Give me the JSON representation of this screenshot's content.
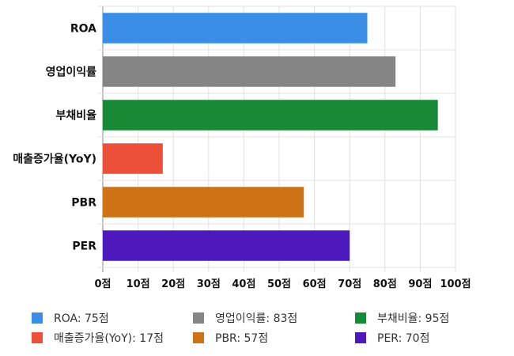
{
  "chart_data": {
    "type": "bar",
    "orientation": "horizontal",
    "categories": [
      "ROA",
      "영업이익률",
      "부채비율",
      "매출증가율(YoY)",
      "PBR",
      "PER"
    ],
    "values": [
      75,
      83,
      95,
      17,
      57,
      70
    ],
    "colors": [
      "#3a8ee6",
      "#858585",
      "#178a37",
      "#ec4f3a",
      "#cd7217",
      "#4e19bc"
    ],
    "xlim": [
      0,
      100
    ],
    "x_ticks": [
      0,
      10,
      20,
      30,
      40,
      50,
      60,
      70,
      80,
      90,
      100
    ],
    "tick_suffix": "점",
    "grid": true,
    "legend_position": "bottom"
  },
  "legend": {
    "items": [
      {
        "text": "ROA: 75점",
        "color": "#3a8ee6"
      },
      {
        "text": "영업이익률: 83점",
        "color": "#858585"
      },
      {
        "text": "부채비율: 95점",
        "color": "#178a37"
      },
      {
        "text": "매출증가율(YoY): 17점",
        "color": "#ec4f3a"
      },
      {
        "text": "PBR: 57점",
        "color": "#cd7217"
      },
      {
        "text": "PER: 70점",
        "color": "#4e19bc"
      }
    ]
  }
}
